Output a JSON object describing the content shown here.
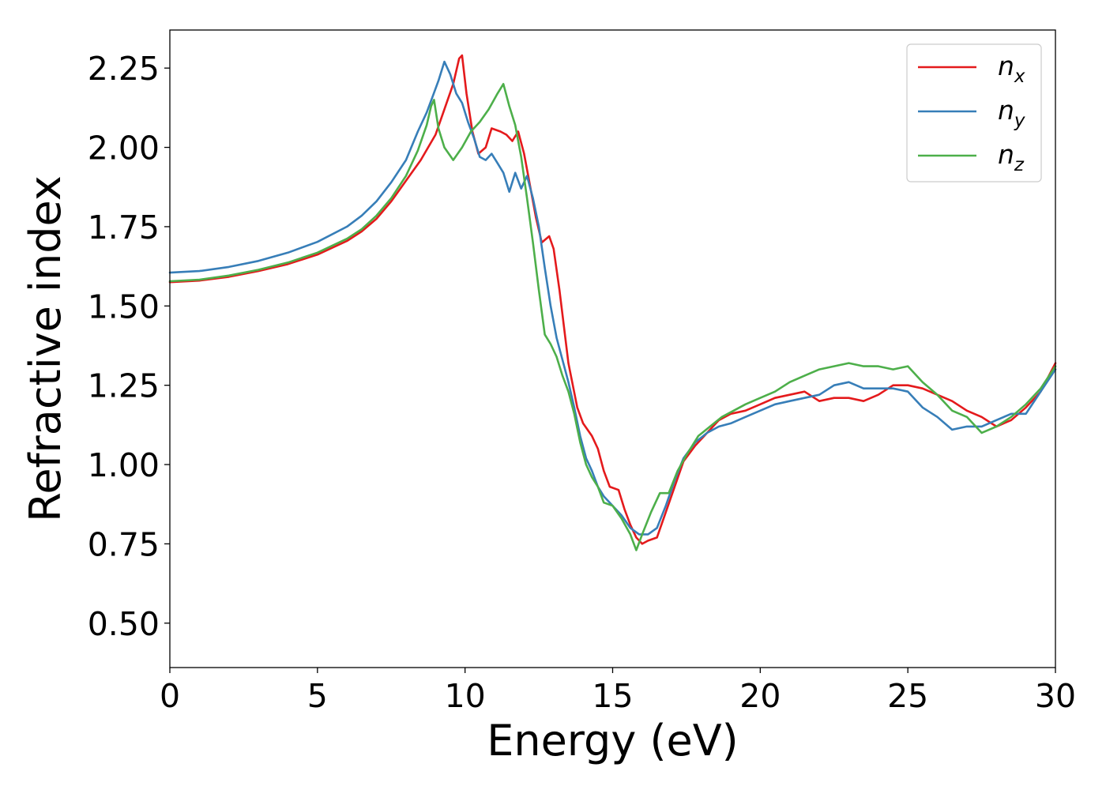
{
  "chart_data": {
    "type": "line",
    "title": "",
    "xlabel": "Energy (eV)",
    "ylabel": "Refractive index",
    "xlim": [
      0,
      30
    ],
    "ylim": [
      0.36,
      2.37
    ],
    "xticks": [
      0,
      5,
      10,
      15,
      20,
      25,
      30
    ],
    "xtick_labels": [
      "0",
      "5",
      "10",
      "15",
      "20",
      "25",
      "30"
    ],
    "yticks": [
      0.5,
      0.75,
      1.0,
      1.25,
      1.5,
      1.75,
      2.0,
      2.25
    ],
    "ytick_labels": [
      "0.50",
      "0.75",
      "1.00",
      "1.25",
      "1.50",
      "1.75",
      "2.00",
      "2.25"
    ],
    "grid": false,
    "legend_position": "top-right",
    "series": [
      {
        "name": "n_x",
        "legend_base": "n",
        "legend_sub": "x",
        "color": "#e41a1c",
        "points": [
          [
            0,
            1.575
          ],
          [
            1,
            1.58
          ],
          [
            2,
            1.592
          ],
          [
            3,
            1.61
          ],
          [
            4,
            1.632
          ],
          [
            5,
            1.662
          ],
          [
            6,
            1.705
          ],
          [
            6.5,
            1.735
          ],
          [
            7,
            1.775
          ],
          [
            7.5,
            1.83
          ],
          [
            8,
            1.895
          ],
          [
            8.5,
            1.96
          ],
          [
            9,
            2.04
          ],
          [
            9.3,
            2.12
          ],
          [
            9.6,
            2.2
          ],
          [
            9.8,
            2.28
          ],
          [
            9.9,
            2.29
          ],
          [
            10.05,
            2.17
          ],
          [
            10.25,
            2.05
          ],
          [
            10.45,
            1.98
          ],
          [
            10.7,
            2.0
          ],
          [
            10.9,
            2.06
          ],
          [
            11.2,
            2.05
          ],
          [
            11.4,
            2.04
          ],
          [
            11.6,
            2.02
          ],
          [
            11.8,
            2.05
          ],
          [
            12.0,
            1.98
          ],
          [
            12.2,
            1.88
          ],
          [
            12.4,
            1.78
          ],
          [
            12.6,
            1.7
          ],
          [
            12.85,
            1.72
          ],
          [
            13.0,
            1.68
          ],
          [
            13.2,
            1.55
          ],
          [
            13.5,
            1.32
          ],
          [
            13.8,
            1.18
          ],
          [
            14.0,
            1.13
          ],
          [
            14.3,
            1.09
          ],
          [
            14.5,
            1.05
          ],
          [
            14.7,
            0.98
          ],
          [
            14.9,
            0.93
          ],
          [
            15.2,
            0.92
          ],
          [
            15.4,
            0.86
          ],
          [
            15.6,
            0.81
          ],
          [
            15.8,
            0.77
          ],
          [
            16.0,
            0.75
          ],
          [
            16.2,
            0.76
          ],
          [
            16.5,
            0.77
          ],
          [
            16.8,
            0.85
          ],
          [
            17.1,
            0.93
          ],
          [
            17.4,
            1.01
          ],
          [
            17.8,
            1.06
          ],
          [
            18.2,
            1.1
          ],
          [
            18.6,
            1.14
          ],
          [
            19.0,
            1.16
          ],
          [
            19.5,
            1.17
          ],
          [
            20.0,
            1.19
          ],
          [
            20.5,
            1.21
          ],
          [
            21.0,
            1.22
          ],
          [
            21.5,
            1.23
          ],
          [
            22.0,
            1.2
          ],
          [
            22.5,
            1.21
          ],
          [
            23.0,
            1.21
          ],
          [
            23.5,
            1.2
          ],
          [
            24.0,
            1.22
          ],
          [
            24.5,
            1.25
          ],
          [
            25.0,
            1.25
          ],
          [
            25.5,
            1.24
          ],
          [
            26.0,
            1.22
          ],
          [
            26.5,
            1.2
          ],
          [
            27.0,
            1.17
          ],
          [
            27.5,
            1.15
          ],
          [
            28.0,
            1.12
          ],
          [
            28.5,
            1.14
          ],
          [
            29.0,
            1.18
          ],
          [
            29.5,
            1.23
          ],
          [
            30.0,
            1.32
          ]
        ]
      },
      {
        "name": "n_y",
        "legend_base": "n",
        "legend_sub": "y",
        "color": "#377eb8",
        "points": [
          [
            0,
            1.605
          ],
          [
            1,
            1.61
          ],
          [
            2,
            1.623
          ],
          [
            3,
            1.642
          ],
          [
            4,
            1.668
          ],
          [
            5,
            1.702
          ],
          [
            6,
            1.75
          ],
          [
            6.5,
            1.785
          ],
          [
            7,
            1.83
          ],
          [
            7.5,
            1.89
          ],
          [
            8,
            1.96
          ],
          [
            8.4,
            2.05
          ],
          [
            8.7,
            2.11
          ],
          [
            8.9,
            2.16
          ],
          [
            9.1,
            2.21
          ],
          [
            9.3,
            2.27
          ],
          [
            9.5,
            2.23
          ],
          [
            9.7,
            2.17
          ],
          [
            9.9,
            2.14
          ],
          [
            10.1,
            2.08
          ],
          [
            10.3,
            2.03
          ],
          [
            10.5,
            1.97
          ],
          [
            10.7,
            1.96
          ],
          [
            10.9,
            1.98
          ],
          [
            11.1,
            1.95
          ],
          [
            11.3,
            1.92
          ],
          [
            11.5,
            1.86
          ],
          [
            11.7,
            1.92
          ],
          [
            11.9,
            1.87
          ],
          [
            12.1,
            1.91
          ],
          [
            12.3,
            1.84
          ],
          [
            12.5,
            1.75
          ],
          [
            12.7,
            1.62
          ],
          [
            12.9,
            1.5
          ],
          [
            13.1,
            1.4
          ],
          [
            13.3,
            1.33
          ],
          [
            13.5,
            1.26
          ],
          [
            13.7,
            1.18
          ],
          [
            13.9,
            1.09
          ],
          [
            14.1,
            1.02
          ],
          [
            14.3,
            0.98
          ],
          [
            14.5,
            0.93
          ],
          [
            14.7,
            0.9
          ],
          [
            15.0,
            0.87
          ],
          [
            15.3,
            0.84
          ],
          [
            15.6,
            0.8
          ],
          [
            15.9,
            0.78
          ],
          [
            16.2,
            0.78
          ],
          [
            16.5,
            0.8
          ],
          [
            16.8,
            0.87
          ],
          [
            17.1,
            0.95
          ],
          [
            17.4,
            1.02
          ],
          [
            17.8,
            1.07
          ],
          [
            18.2,
            1.1
          ],
          [
            18.6,
            1.12
          ],
          [
            19.0,
            1.13
          ],
          [
            19.5,
            1.15
          ],
          [
            20.0,
            1.17
          ],
          [
            20.5,
            1.19
          ],
          [
            21.0,
            1.2
          ],
          [
            21.5,
            1.21
          ],
          [
            22.0,
            1.22
          ],
          [
            22.5,
            1.25
          ],
          [
            23.0,
            1.26
          ],
          [
            23.5,
            1.24
          ],
          [
            24.0,
            1.24
          ],
          [
            24.5,
            1.24
          ],
          [
            25.0,
            1.23
          ],
          [
            25.5,
            1.18
          ],
          [
            26.0,
            1.15
          ],
          [
            26.5,
            1.11
          ],
          [
            27.0,
            1.12
          ],
          [
            27.5,
            1.12
          ],
          [
            28.0,
            1.14
          ],
          [
            28.5,
            1.16
          ],
          [
            29.0,
            1.16
          ],
          [
            29.5,
            1.23
          ],
          [
            30.0,
            1.3
          ]
        ]
      },
      {
        "name": "n_z",
        "legend_base": "n",
        "legend_sub": "z",
        "color": "#4daf4a",
        "points": [
          [
            0,
            1.578
          ],
          [
            1,
            1.583
          ],
          [
            2,
            1.596
          ],
          [
            3,
            1.614
          ],
          [
            4,
            1.637
          ],
          [
            5,
            1.668
          ],
          [
            6,
            1.712
          ],
          [
            6.5,
            1.742
          ],
          [
            7,
            1.785
          ],
          [
            7.5,
            1.84
          ],
          [
            8,
            1.91
          ],
          [
            8.4,
            1.99
          ],
          [
            8.7,
            2.07
          ],
          [
            8.85,
            2.13
          ],
          [
            8.95,
            2.15
          ],
          [
            9.1,
            2.06
          ],
          [
            9.3,
            2.0
          ],
          [
            9.6,
            1.96
          ],
          [
            9.9,
            2.0
          ],
          [
            10.2,
            2.05
          ],
          [
            10.5,
            2.08
          ],
          [
            10.8,
            2.12
          ],
          [
            11.1,
            2.17
          ],
          [
            11.3,
            2.2
          ],
          [
            11.5,
            2.13
          ],
          [
            11.7,
            2.07
          ],
          [
            11.9,
            1.97
          ],
          [
            12.1,
            1.84
          ],
          [
            12.3,
            1.7
          ],
          [
            12.5,
            1.55
          ],
          [
            12.7,
            1.41
          ],
          [
            12.9,
            1.38
          ],
          [
            13.1,
            1.34
          ],
          [
            13.3,
            1.28
          ],
          [
            13.5,
            1.23
          ],
          [
            13.7,
            1.16
          ],
          [
            13.9,
            1.07
          ],
          [
            14.1,
            1.0
          ],
          [
            14.3,
            0.96
          ],
          [
            14.5,
            0.93
          ],
          [
            14.7,
            0.88
          ],
          [
            15.0,
            0.87
          ],
          [
            15.3,
            0.83
          ],
          [
            15.6,
            0.78
          ],
          [
            15.8,
            0.73
          ],
          [
            16.0,
            0.78
          ],
          [
            16.3,
            0.85
          ],
          [
            16.6,
            0.91
          ],
          [
            16.9,
            0.91
          ],
          [
            17.2,
            0.98
          ],
          [
            17.5,
            1.03
          ],
          [
            17.9,
            1.09
          ],
          [
            18.3,
            1.12
          ],
          [
            18.7,
            1.15
          ],
          [
            19.1,
            1.17
          ],
          [
            19.5,
            1.19
          ],
          [
            20.0,
            1.21
          ],
          [
            20.5,
            1.23
          ],
          [
            21.0,
            1.26
          ],
          [
            21.5,
            1.28
          ],
          [
            22.0,
            1.3
          ],
          [
            22.5,
            1.31
          ],
          [
            23.0,
            1.32
          ],
          [
            23.5,
            1.31
          ],
          [
            24.0,
            1.31
          ],
          [
            24.5,
            1.3
          ],
          [
            25.0,
            1.31
          ],
          [
            25.5,
            1.26
          ],
          [
            26.0,
            1.22
          ],
          [
            26.5,
            1.17
          ],
          [
            27.0,
            1.15
          ],
          [
            27.5,
            1.1
          ],
          [
            28.0,
            1.12
          ],
          [
            28.5,
            1.15
          ],
          [
            29.0,
            1.19
          ],
          [
            29.5,
            1.24
          ],
          [
            30.0,
            1.31
          ]
        ]
      }
    ]
  }
}
